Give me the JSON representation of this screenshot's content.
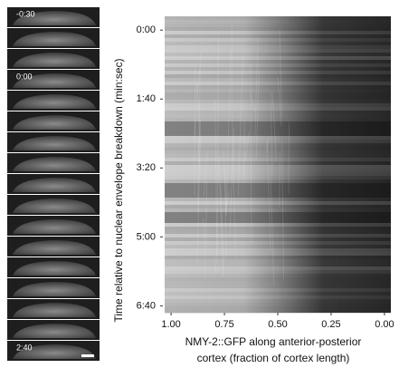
{
  "filmstrip": {
    "labels": [
      "-0:30",
      "0:00",
      "2:40"
    ]
  },
  "chart_data": {
    "type": "heatmap",
    "ylabel": "Time relative to nuclear envelope breakdown  (min:sec)",
    "xlabel": [
      "NMY-2::GFP along anterior-posterior",
      "cortex (fraction of cortex length)"
    ],
    "xlim": [
      1.03,
      -0.03
    ],
    "xticks": [
      {
        "value": 1,
        "label": "1.00"
      },
      {
        "value": 0.75,
        "label": "0.75"
      },
      {
        "value": 0.5,
        "label": "0.50"
      },
      {
        "value": 0.25,
        "label": "0.25"
      },
      {
        "value": 0,
        "label": "0.00"
      }
    ],
    "ylim": [
      -20,
      410
    ],
    "yticks": [
      {
        "value": 0,
        "label": "0:00"
      },
      {
        "value": 100,
        "label": "1:40"
      },
      {
        "value": 200,
        "label": "3:20"
      },
      {
        "value": 300,
        "label": "5:00"
      },
      {
        "value": 400,
        "label": "6:40"
      }
    ]
  }
}
